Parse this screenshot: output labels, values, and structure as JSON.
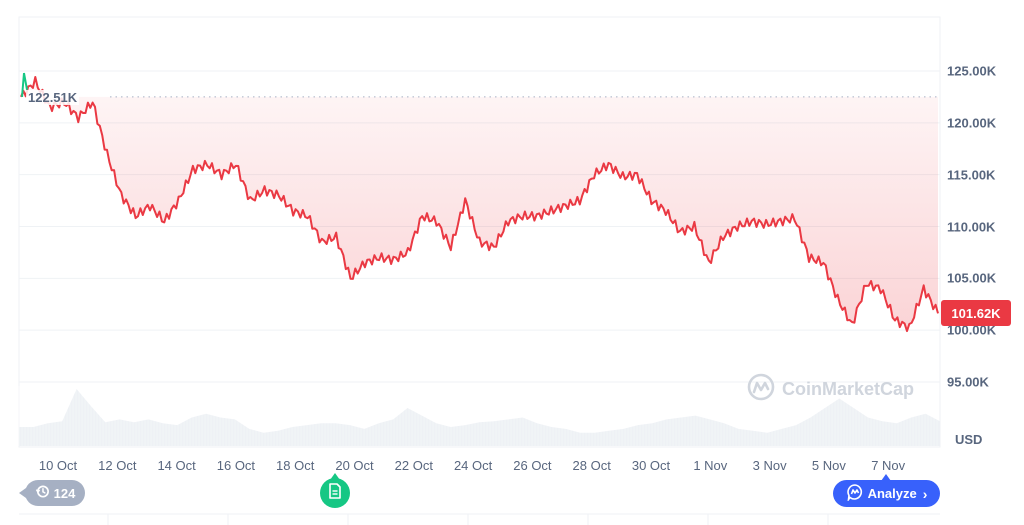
{
  "chart_data": {
    "type": "line",
    "title": "",
    "currency": "USD",
    "xlabel": "",
    "ylabel": "USD",
    "ylim": [
      90000,
      130000
    ],
    "y_ticks": [
      "125.00K",
      "120.00K",
      "115.00K",
      "110.00K",
      "105.00K",
      "100.00K",
      "95.00K"
    ],
    "y_tick_values": [
      125000,
      120000,
      115000,
      110000,
      105000,
      100000,
      95000
    ],
    "x_ticks": [
      "10 Oct",
      "12 Oct",
      "14 Oct",
      "16 Oct",
      "18 Oct",
      "20 Oct",
      "22 Oct",
      "24 Oct",
      "26 Oct",
      "28 Oct",
      "30 Oct",
      "1 Nov",
      "3 Nov",
      "5 Nov",
      "7 Nov"
    ],
    "grid": true,
    "reference_line": {
      "label": "122.51K",
      "value": 122510,
      "style": "dotted"
    },
    "current_price": {
      "label": "101.62K",
      "value": 101620,
      "color": "#ea3943"
    },
    "series": [
      {
        "name": "Price",
        "color": "#ea3943",
        "x": [
          "8 Oct 12:00",
          "9 Oct 00:00",
          "9 Oct 12:00",
          "10 Oct 00:00",
          "10 Oct 06:00",
          "10 Oct 12:00",
          "10 Oct 18:00",
          "11 Oct 00:00",
          "11 Oct 06:00",
          "11 Oct 12:00",
          "12 Oct 00:00",
          "12 Oct 12:00",
          "13 Oct 00:00",
          "13 Oct 12:00",
          "14 Oct 00:00",
          "14 Oct 12:00",
          "15 Oct 00:00",
          "15 Oct 12:00",
          "16 Oct 00:00",
          "16 Oct 12:00",
          "17 Oct 00:00",
          "17 Oct 12:00",
          "18 Oct 00:00",
          "18 Oct 12:00",
          "19 Oct 00:00",
          "19 Oct 12:00",
          "20 Oct 00:00",
          "20 Oct 12:00",
          "21 Oct 00:00",
          "21 Oct 12:00",
          "22 Oct 00:00",
          "22 Oct 12:00",
          "23 Oct 00:00",
          "23 Oct 12:00",
          "24 Oct 00:00",
          "24 Oct 12:00",
          "25 Oct 00:00",
          "25 Oct 12:00",
          "26 Oct 00:00",
          "26 Oct 12:00",
          "27 Oct 00:00",
          "27 Oct 12:00",
          "28 Oct 00:00",
          "28 Oct 12:00",
          "29 Oct 00:00",
          "29 Oct 12:00",
          "30 Oct 00:00",
          "30 Oct 12:00",
          "31 Oct 00:00",
          "31 Oct 12:00",
          "1 Nov 00:00",
          "1 Nov 12:00",
          "2 Nov 00:00",
          "2 Nov 12:00",
          "3 Nov 00:00",
          "3 Nov 12:00",
          "4 Nov 00:00",
          "4 Nov 12:00",
          "5 Nov 00:00",
          "5 Nov 12:00",
          "6 Nov 00:00",
          "6 Nov 12:00",
          "7 Nov 00:00",
          "7 Nov 12:00",
          "8 Nov 00:00"
        ],
        "values": [
          122500,
          124000,
          121500,
          122000,
          120500,
          122000,
          117000,
          113000,
          111000,
          112000,
          110500,
          112500,
          115500,
          116000,
          115000,
          116000,
          112500,
          113500,
          113000,
          111500,
          111000,
          108500,
          109000,
          105000,
          106500,
          107000,
          106800,
          107500,
          111000,
          110500,
          108000,
          112500,
          108500,
          108000,
          110500,
          111000,
          111000,
          111500,
          112000,
          112500,
          115000,
          116000,
          114800,
          115000,
          112500,
          111500,
          109500,
          110000,
          106500,
          109000,
          110000,
          110500,
          110200,
          110500,
          110800,
          107000,
          106500,
          103000,
          100500,
          104500,
          104000,
          101000,
          100200,
          104000,
          101620
        ]
      },
      {
        "name": "Volume",
        "type": "area",
        "color": "#eff2f5",
        "values": [
          20,
          20,
          24,
          26,
          60,
          42,
          25,
          28,
          25,
          28,
          24,
          22,
          30,
          34,
          30,
          28,
          18,
          14,
          16,
          20,
          22,
          24,
          24,
          22,
          18,
          24,
          28,
          40,
          32,
          24,
          20,
          22,
          25,
          26,
          28,
          30,
          24,
          20,
          18,
          14,
          14,
          16,
          18,
          22,
          24,
          28,
          30,
          32,
          28,
          24,
          18,
          16,
          14,
          18,
          22,
          30,
          40,
          50,
          40,
          30,
          26,
          24,
          30,
          34,
          26
        ]
      }
    ]
  },
  "axis": {
    "usd_label": "USD"
  },
  "labels": {
    "high_price": "122.51K",
    "current_price": "101.62K",
    "watermark": "CoinMarketCap"
  },
  "controls": {
    "history_count": "124",
    "analyze_label": "Analyze"
  },
  "icons": {
    "history": "history-clock-icon",
    "news": "document-icon",
    "analyze": "ai-chat-icon",
    "chevron": "chevron-right-icon",
    "logo": "coinmarketcap-logo-icon"
  },
  "colors": {
    "price_line": "#ea3943",
    "price_badge": "#ea3943",
    "news_pin": "#16c784",
    "analyze_btn": "#3861fb",
    "history_pill": "#a6b0c3",
    "axis_text": "#58667e",
    "grid": "#eff2f5"
  }
}
